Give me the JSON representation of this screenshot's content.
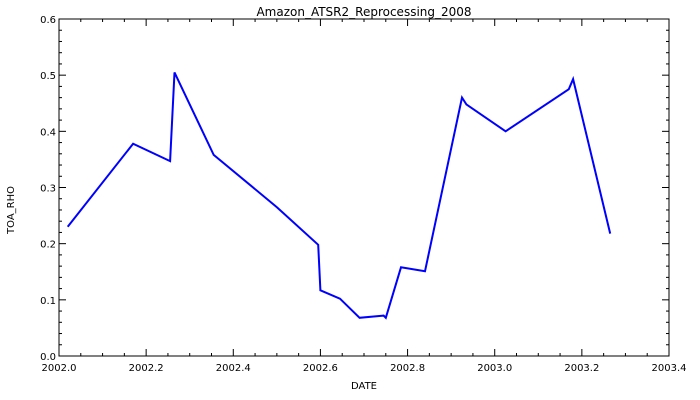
{
  "chart_data": {
    "type": "line",
    "title": "Amazon_ATSR2_Reprocessing_2008",
    "xlabel": "DATE",
    "ylabel": "TOA_RHO",
    "xlim": [
      2002.0,
      2003.4
    ],
    "ylim": [
      0.0,
      0.6
    ],
    "xticks": [
      "2002.0",
      "2002.2",
      "2002.4",
      "2002.6",
      "2002.8",
      "2003.0",
      "2003.2",
      "2003.4"
    ],
    "yticks": [
      "0.0",
      "0.1",
      "0.2",
      "0.3",
      "0.4",
      "0.5",
      "0.6"
    ],
    "grid": false,
    "color": "#0000ff",
    "series": [
      {
        "x": [
          2002.02,
          2002.17,
          2002.255,
          2002.265,
          2002.355,
          2002.5,
          2002.595,
          2002.6,
          2002.645,
          2002.69,
          2002.745,
          2002.75,
          2002.785,
          2002.84,
          2002.925,
          2002.935,
          2003.025,
          2003.17,
          2003.18,
          2003.265
        ],
        "y": [
          0.23,
          0.378,
          0.347,
          0.505,
          0.358,
          0.265,
          0.198,
          0.117,
          0.102,
          0.068,
          0.072,
          0.068,
          0.158,
          0.151,
          0.46,
          0.448,
          0.4,
          0.475,
          0.493,
          0.218
        ]
      }
    ]
  }
}
